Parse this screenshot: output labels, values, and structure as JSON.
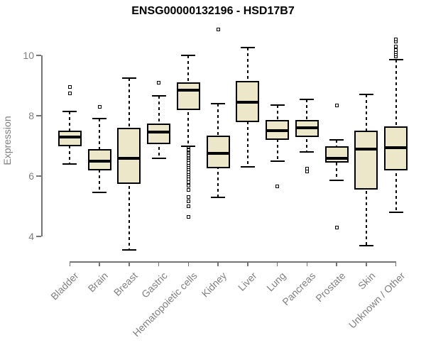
{
  "chart_data": {
    "type": "boxplot",
    "title": "ENSG00000132196 - HSD17B7",
    "ylabel": "Expression",
    "xlabel": "",
    "ylim": [
      3.4,
      11.0
    ],
    "yticks": [
      4,
      6,
      8,
      10
    ],
    "grid": false,
    "legend": "none",
    "categories": [
      "Bladder",
      "Brain",
      "Breast",
      "Gastric",
      "Hematopoietic cells",
      "Kidney",
      "Liver",
      "Lung",
      "Pancreas",
      "Prostate",
      "Skin",
      "Unknown / Other"
    ],
    "series": [
      {
        "name": "Bladder",
        "whisker_low": 6.4,
        "q1": 7.0,
        "median": 7.3,
        "q3": 7.5,
        "whisker_high": 8.15,
        "outliers": [
          8.75,
          8.95
        ]
      },
      {
        "name": "Brain",
        "whisker_low": 5.45,
        "q1": 6.2,
        "median": 6.5,
        "q3": 6.9,
        "whisker_high": 7.9,
        "outliers": [
          8.3
        ]
      },
      {
        "name": "Breast",
        "whisker_low": 3.55,
        "q1": 5.75,
        "median": 6.6,
        "q3": 7.6,
        "whisker_high": 9.25,
        "outliers": []
      },
      {
        "name": "Gastric",
        "whisker_low": 6.6,
        "q1": 7.05,
        "median": 7.45,
        "q3": 7.75,
        "whisker_high": 8.65,
        "outliers": [
          9.1
        ]
      },
      {
        "name": "Hematopoietic cells",
        "whisker_low": 7.0,
        "q1": 8.2,
        "median": 8.85,
        "q3": 9.1,
        "whisker_high": 10.0,
        "outliers": [
          6.93,
          6.89,
          6.85,
          6.8,
          6.76,
          6.71,
          6.66,
          6.61,
          6.56,
          6.5,
          6.44,
          6.35,
          6.28,
          6.2,
          6.12,
          6.04,
          5.97,
          5.9,
          5.8,
          5.68,
          5.54,
          5.3,
          5.17,
          5.0,
          4.65
        ]
      },
      {
        "name": "Kidney",
        "whisker_low": 5.3,
        "q1": 6.25,
        "median": 6.75,
        "q3": 7.35,
        "whisker_high": 8.4,
        "outliers": [
          10.85
        ]
      },
      {
        "name": "Liver",
        "whisker_low": 6.3,
        "q1": 7.8,
        "median": 8.45,
        "q3": 9.15,
        "whisker_high": 10.25,
        "outliers": []
      },
      {
        "name": "Lung",
        "whisker_low": 6.5,
        "q1": 7.2,
        "median": 7.5,
        "q3": 7.85,
        "whisker_high": 8.35,
        "outliers": [
          5.65
        ]
      },
      {
        "name": "Pancreas",
        "whisker_low": 6.8,
        "q1": 7.3,
        "median": 7.6,
        "q3": 7.85,
        "whisker_high": 8.55,
        "outliers": [
          6.25,
          6.15
        ]
      },
      {
        "name": "Prostate",
        "whisker_low": 5.85,
        "q1": 6.45,
        "median": 6.6,
        "q3": 7.0,
        "whisker_high": 7.2,
        "outliers": [
          8.35,
          4.3
        ]
      },
      {
        "name": "Skin",
        "whisker_low": 3.7,
        "q1": 5.55,
        "median": 6.9,
        "q3": 7.5,
        "whisker_high": 8.7,
        "outliers": []
      },
      {
        "name": "Unknown / Other",
        "whisker_low": 4.8,
        "q1": 6.2,
        "median": 6.95,
        "q3": 7.65,
        "whisker_high": 9.85,
        "outliers": [
          9.97,
          10.03,
          10.1,
          10.18,
          10.3,
          10.45,
          10.52
        ]
      }
    ],
    "colors": {
      "box_fill": "#ede7c9",
      "box_border": "#000000",
      "median": "#000000",
      "whisker": "#000000",
      "axis": "#757575",
      "tick_label": "#808080",
      "title": "#000000",
      "background": "#ffffff"
    }
  }
}
